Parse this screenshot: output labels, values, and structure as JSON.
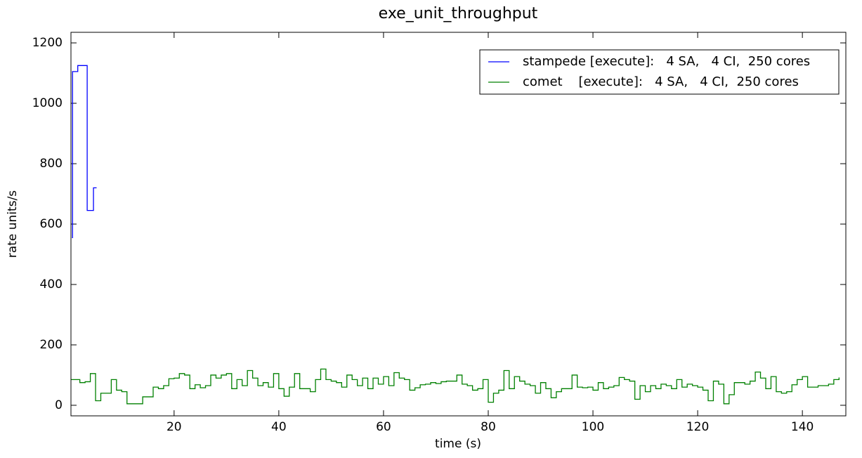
{
  "chart_data": {
    "type": "step",
    "title": "exe_unit_throughput",
    "x_label": "time (s)",
    "y_label": "rate units/s",
    "xlim": [
      0.3,
      148.3
    ],
    "ylim": [
      -35,
      1235
    ],
    "xticks": [
      20,
      40,
      60,
      80,
      100,
      120,
      140
    ],
    "yticks": [
      0,
      200,
      400,
      600,
      800,
      1000,
      1200
    ],
    "legend": "upper right",
    "series": [
      {
        "name": "stampede [execute]:   4 SA,   4 CI,  250 cores",
        "color": "#0000ff",
        "x": [
          0.5,
          0.6,
          1.6,
          3.4,
          4.6,
          5.2
        ],
        "values": [
          555,
          1105,
          1125,
          645,
          720,
          720
        ]
      },
      {
        "name": "comet    [execute]:   4 SA,   4 CI,  250 cores",
        "color": "#008000",
        "x": [
          0,
          1,
          2,
          3,
          4,
          5,
          6,
          7,
          8,
          9,
          10,
          11,
          12,
          13,
          14,
          15,
          16,
          17,
          18,
          19,
          20,
          21,
          22,
          23,
          24,
          25,
          26,
          27,
          28,
          29,
          30,
          31,
          32,
          33,
          34,
          35,
          36,
          37,
          38,
          39,
          40,
          41,
          42,
          43,
          44,
          45,
          46,
          47,
          48,
          49,
          50,
          51,
          52,
          53,
          54,
          55,
          56,
          57,
          58,
          59,
          60,
          61,
          62,
          63,
          64,
          65,
          66,
          67,
          68,
          69,
          70,
          71,
          72,
          73,
          74,
          75,
          76,
          77,
          78,
          79,
          80,
          81,
          82,
          83,
          84,
          85,
          86,
          87,
          88,
          89,
          90,
          91,
          92,
          93,
          94,
          95,
          96,
          97,
          98,
          99,
          100,
          101,
          102,
          103,
          104,
          105,
          106,
          107,
          108,
          109,
          110,
          111,
          112,
          113,
          114,
          115,
          116,
          117,
          118,
          119,
          120,
          121,
          122,
          123,
          124,
          125,
          126,
          127,
          128,
          129,
          130,
          131,
          132,
          133,
          134,
          135,
          136,
          137,
          138,
          139,
          140,
          141,
          142,
          143,
          144,
          145,
          146,
          147
        ],
        "values": [
          85,
          85,
          75,
          78,
          105,
          15,
          40,
          40,
          85,
          50,
          45,
          5,
          5,
          5,
          28,
          28,
          60,
          55,
          65,
          88,
          90,
          105,
          100,
          55,
          68,
          58,
          65,
          100,
          90,
          100,
          105,
          55,
          85,
          65,
          115,
          90,
          65,
          75,
          60,
          105,
          55,
          30,
          60,
          105,
          55,
          55,
          45,
          85,
          120,
          85,
          80,
          75,
          60,
          100,
          85,
          65,
          90,
          55,
          90,
          70,
          95,
          65,
          108,
          90,
          85,
          50,
          58,
          68,
          70,
          75,
          72,
          78,
          80,
          80,
          100,
          70,
          65,
          50,
          55,
          85,
          10,
          40,
          50,
          115,
          55,
          95,
          80,
          70,
          65,
          40,
          75,
          55,
          25,
          45,
          55,
          55,
          100,
          60,
          58,
          60,
          50,
          75,
          55,
          60,
          65,
          92,
          85,
          80,
          20,
          65,
          45,
          65,
          55,
          70,
          65,
          55,
          85,
          60,
          70,
          65,
          60,
          50,
          15,
          80,
          70,
          5,
          35,
          75,
          75,
          70,
          80,
          110,
          90,
          55,
          95,
          45,
          40,
          45,
          68,
          85,
          95,
          60,
          60,
          65,
          65,
          70,
          85,
          92
        ]
      }
    ]
  }
}
